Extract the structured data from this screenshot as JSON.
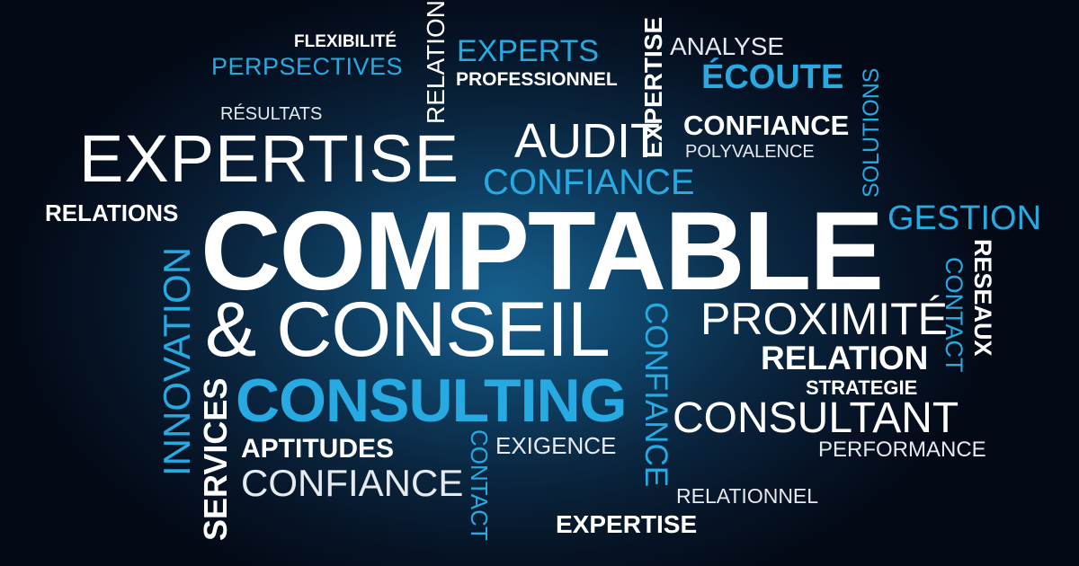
{
  "colors": {
    "background_center": "#17608e",
    "background_edge": "#030915",
    "white_words": "#ffffff",
    "blue_words": "#27aae1"
  },
  "words": {
    "comptable": "COMPTABLE",
    "conseil": "& CONSEIL",
    "consulting": "CONSULTING",
    "expertise_large": "EXPERTISE",
    "flexibilite": "FLEXIBILITÉ",
    "perspectives": "PERPSECTIVES",
    "resultats": "RÉSULTATS",
    "relations": "RELATIONS",
    "relation_vertical": "RELATION",
    "experts": "EXPERTS",
    "professionnel": "PROFESSIONNEL",
    "expertise_vertical": "EXPERTISE",
    "analyse": "ANALYSE",
    "ecoute": "ÉCOUTE",
    "confiance_bold": "CONFIANCE",
    "polyvalence": "POLYVALENCE",
    "solutions": "SOLUTIONS",
    "audit": "AUDIT",
    "confiance_blue": "CONFIANCE",
    "gestion": "GESTION",
    "reseaux": "RESEAUX",
    "contact_right": "CONTACT",
    "proximite": "PROXIMITÉ",
    "relation_bold": "RELATION",
    "strategie": "STRATEGIE",
    "consultant": "CONSULTANT",
    "performance": "PERFORMANCE",
    "innovation": "INNOVATION",
    "services": "SERVICES",
    "aptitudes": "APTITUDES",
    "confiance_lower": "CONFIANCE",
    "contact_lower": "CONTACT",
    "exigence": "EXIGENCE",
    "confiance_vertical": "CONFIANCE",
    "relationnel": "RELATIONNEL",
    "expertise_bottom": "EXPERTISE"
  }
}
